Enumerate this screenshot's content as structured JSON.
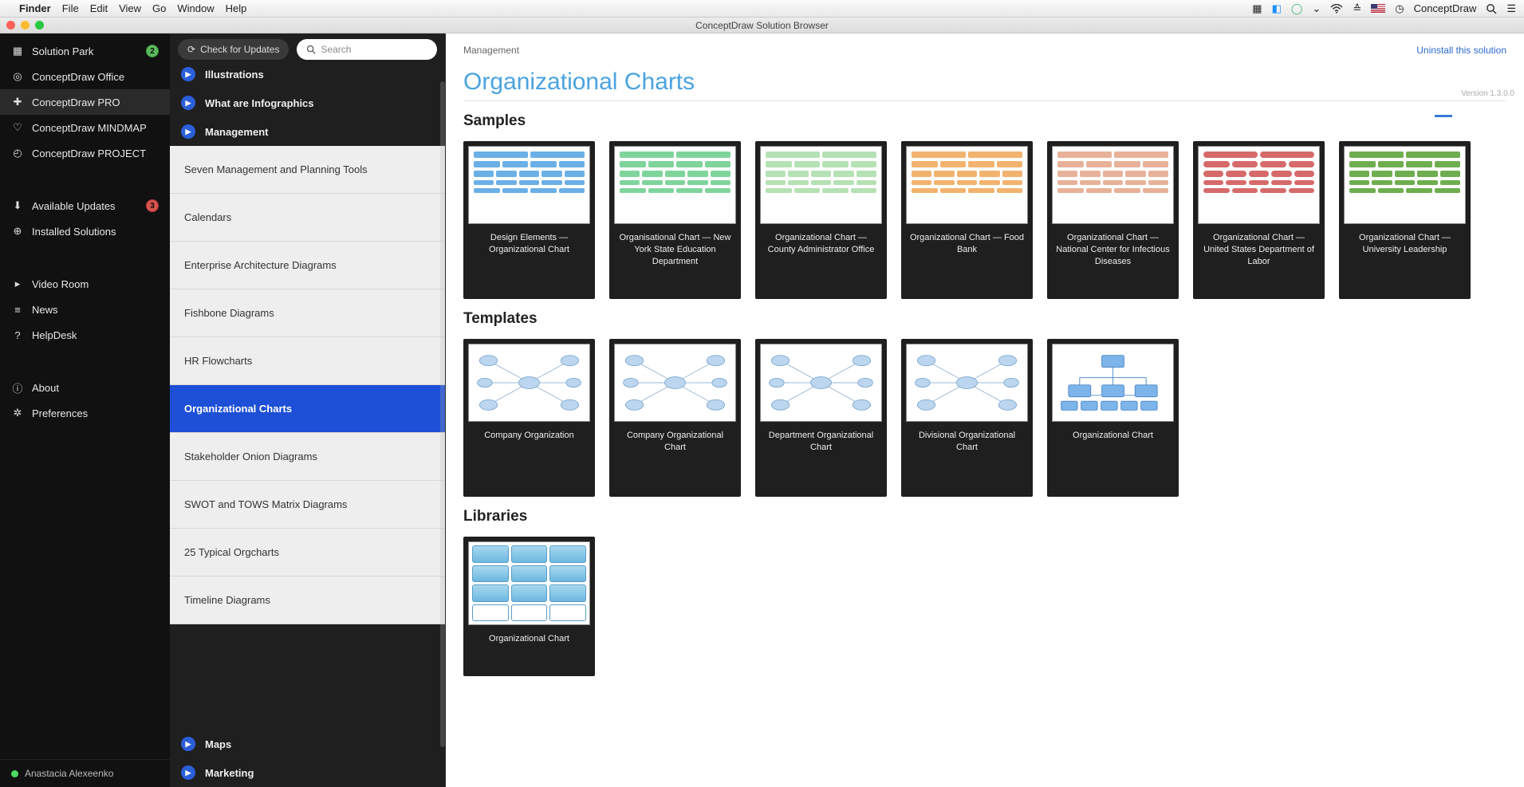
{
  "menubar": {
    "app": "Finder",
    "items": [
      "File",
      "Edit",
      "View",
      "Go",
      "Window",
      "Help"
    ],
    "right_app": "ConceptDraw"
  },
  "window": {
    "title": "ConceptDraw Solution Browser"
  },
  "sidebar": {
    "groups": [
      {
        "items": [
          {
            "icon": "grid",
            "label": "Solution Park",
            "badge": "2",
            "badge_color": "green"
          },
          {
            "icon": "target",
            "label": "ConceptDraw Office"
          },
          {
            "icon": "plus-square",
            "label": "ConceptDraw PRO",
            "selected": true
          },
          {
            "icon": "bulb",
            "label": "ConceptDraw MINDMAP"
          },
          {
            "icon": "clock",
            "label": "ConceptDraw PROJECT"
          }
        ]
      },
      {
        "items": [
          {
            "icon": "download",
            "label": "Available Updates",
            "badge": "3",
            "badge_color": "red"
          },
          {
            "icon": "down-circle",
            "label": "Installed Solutions"
          }
        ]
      },
      {
        "items": [
          {
            "icon": "play",
            "label": "Video Room"
          },
          {
            "icon": "lines",
            "label": "News"
          },
          {
            "icon": "question",
            "label": "HelpDesk"
          }
        ]
      },
      {
        "items": [
          {
            "icon": "info",
            "label": "About"
          },
          {
            "icon": "gear",
            "label": "Preferences"
          }
        ]
      }
    ],
    "user": "Anastacia Alexeenko"
  },
  "middle": {
    "check_updates": "Check for Updates",
    "search_placeholder": "Search",
    "categories_top": [
      {
        "label": "Illustrations",
        "cut": true
      },
      {
        "label": "What are Infographics"
      },
      {
        "label": "Management"
      }
    ],
    "subitems": [
      "Seven Management and Planning Tools",
      "Calendars",
      "Enterprise Architecture Diagrams",
      "Fishbone Diagrams",
      "HR Flowcharts",
      "Organizational Charts",
      "Stakeholder Onion Diagrams",
      "SWOT and TOWS Matrix Diagrams",
      "25 Typical Orgcharts",
      "Timeline Diagrams"
    ],
    "active_subitem": "Organizational Charts",
    "categories_bottom": [
      {
        "label": "Maps"
      },
      {
        "label": "Marketing"
      }
    ]
  },
  "main": {
    "breadcrumb": "Management",
    "uninstall": "Uninstall this solution",
    "title": "Organizational Charts",
    "version": "Version 1.3.0.0",
    "sections": {
      "samples": {
        "heading": "Samples",
        "cards": [
          {
            "label": "Design Elements — Organizational Chart",
            "theme": "c-blue"
          },
          {
            "label": "Organisational Chart — New York State Education Department",
            "theme": "c-green"
          },
          {
            "label": "Organizational Chart — County Administrator Office",
            "theme": "c-green2"
          },
          {
            "label": "Organizational Chart — Food Bank",
            "theme": "c-orange"
          },
          {
            "label": "Organizational Chart — National Center for Infectious Diseases",
            "theme": "c-salmon"
          },
          {
            "label": "Organizational Chart — United States Department of Labor",
            "theme": "c-red"
          },
          {
            "label": "Organizational Chart — University Leadership",
            "theme": "c-dgreen"
          }
        ]
      },
      "templates": {
        "heading": "Templates",
        "cards": [
          {
            "label": "Company Organization",
            "variant": "net"
          },
          {
            "label": "Company Organizational Chart",
            "variant": "net"
          },
          {
            "label": "Department Organizational Chart",
            "variant": "net"
          },
          {
            "label": "Divisional Organizational Chart",
            "variant": "net"
          },
          {
            "label": "Organizational Chart",
            "variant": "tree"
          }
        ]
      },
      "libraries": {
        "heading": "Libraries",
        "cards": [
          {
            "label": "Organizational Chart"
          }
        ]
      }
    }
  }
}
